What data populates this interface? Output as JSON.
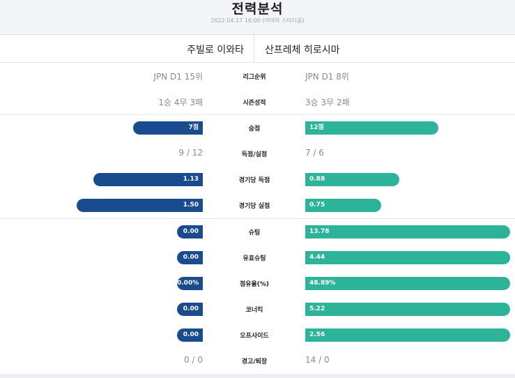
{
  "header": {
    "title": "전력분석",
    "subtitle": "2022.04.17 16:00 (아마하 스타디움)"
  },
  "teams": {
    "home": "주빌로 이와타",
    "away": "산프레체 히로시마"
  },
  "colors": {
    "home": "#1b4b8f",
    "away": "#2cb398"
  },
  "text_rows": [
    {
      "label": "리그순위",
      "home": "JPN D1 15위",
      "away": "JPN D1 8위"
    },
    {
      "label": "시즌성적",
      "home": "1승 4무 3패",
      "away": "3승 3무 2패"
    }
  ],
  "stat_rows": [
    {
      "label": "승점",
      "type": "bar",
      "home": "7점",
      "away": "12점",
      "home_ratio": 0.37,
      "away_ratio": 0.65
    },
    {
      "label": "득점/실점",
      "type": "text",
      "home": "9 / 12",
      "away": "7 / 6"
    },
    {
      "label": "경기당 득점",
      "type": "bar",
      "home": "1.13",
      "away": "0.88",
      "home_ratio": 0.58,
      "away_ratio": 0.46
    },
    {
      "label": "경기당 실점",
      "type": "bar",
      "home": "1.50",
      "away": "0.75",
      "home_ratio": 0.67,
      "away_ratio": 0.37
    }
  ],
  "detail_rows": [
    {
      "label": "슈팅",
      "type": "bar",
      "home": "0.00",
      "away": "13.78",
      "home_ratio": 0.0,
      "away_ratio": 1.0
    },
    {
      "label": "유효슈팅",
      "type": "bar",
      "home": "0.00",
      "away": "4.44",
      "home_ratio": 0.0,
      "away_ratio": 1.0
    },
    {
      "label": "점유율(%)",
      "type": "bar",
      "home": "0.00%",
      "away": "48.89%",
      "home_ratio": 0.0,
      "away_ratio": 1.0
    },
    {
      "label": "코너킥",
      "type": "bar",
      "home": "0.00",
      "away": "5.22",
      "home_ratio": 0.0,
      "away_ratio": 1.0
    },
    {
      "label": "오프사이드",
      "type": "bar",
      "home": "0.00",
      "away": "2.56",
      "home_ratio": 0.0,
      "away_ratio": 1.0
    },
    {
      "label": "경고/퇴장",
      "type": "text",
      "home": "0 / 0",
      "away": "14 / 0"
    }
  ]
}
